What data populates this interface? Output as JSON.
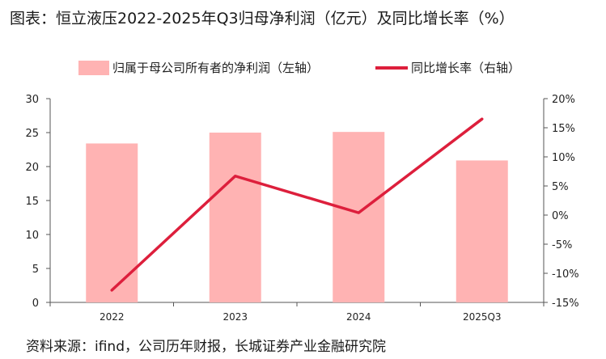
{
  "title": "图表：恒立液压2022-2025年Q3归母净利润（亿元）及同比增长率（%）",
  "source": "资料来源：ifind，公司历年财报，长城证券产业金融研究院",
  "colors": {
    "bar": "#ffb3b3",
    "line": "#dd1f3c",
    "axis": "#555555"
  },
  "chart_data": {
    "type": "bar",
    "categories": [
      "2022",
      "2023",
      "2024",
      "2025Q3"
    ],
    "series": [
      {
        "name": "归属于母公司所有者的净利润（左轴）",
        "type": "bar",
        "axis": "left",
        "values": [
          23.4,
          25.0,
          25.1,
          20.9
        ]
      },
      {
        "name": "同比增长率（右轴）",
        "type": "line",
        "axis": "right",
        "values": [
          -12.9,
          6.7,
          0.4,
          16.5
        ]
      }
    ],
    "y_left": {
      "lim": [
        0,
        30
      ],
      "ticks": [
        "0",
        "5",
        "10",
        "15",
        "20",
        "25",
        "30"
      ]
    },
    "y_right": {
      "lim": [
        -15,
        20
      ],
      "ticks": [
        "-15%",
        "-10%",
        "-5%",
        "0%",
        "5%",
        "10%",
        "15%",
        "20%"
      ]
    },
    "legend": "top",
    "grid": false
  }
}
